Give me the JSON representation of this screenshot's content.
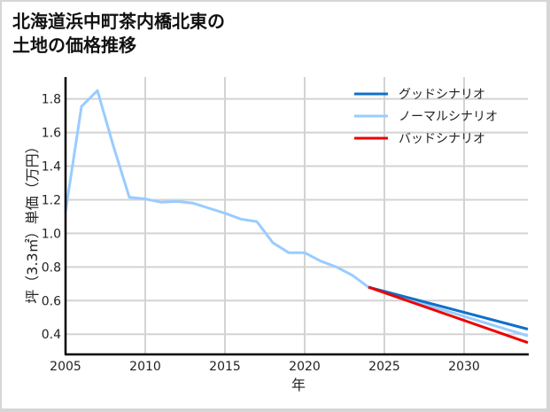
{
  "title": {
    "line1": "北海道浜中町茶内橋北東の",
    "line2": "土地の価格推移"
  },
  "chart_data": {
    "type": "line",
    "title": "北海道浜中町茶内橋北東の土地の価格推移",
    "xlabel": "年",
    "ylabel": "坪（3.3㎡）単価（万円）",
    "xlim": [
      2005,
      2034
    ],
    "ylim": [
      0.28,
      1.93
    ],
    "x_ticks": [
      "2005",
      "2010",
      "2015",
      "2020",
      "2025",
      "2030"
    ],
    "y_ticks": [
      "0.4",
      "0.6",
      "0.8",
      "1.0",
      "1.2",
      "1.4",
      "1.6",
      "1.8"
    ],
    "grid": true,
    "legend_position": "upper right",
    "series": [
      {
        "name": "グッドシナリオ",
        "color": "#1070c8",
        "x": [
          2024,
          2034
        ],
        "values": [
          0.68,
          0.43
        ]
      },
      {
        "name": "ノーマルシナリオ",
        "color": "#99ccff",
        "x": [
          2005,
          2006,
          2007,
          2008,
          2009,
          2010,
          2011,
          2012,
          2013,
          2014,
          2015,
          2016,
          2017,
          2018,
          2019,
          2020,
          2021,
          2022,
          2023,
          2024,
          2034
        ],
        "values": [
          1.13,
          1.755,
          1.85,
          1.52,
          1.215,
          1.205,
          1.185,
          1.19,
          1.18,
          1.15,
          1.12,
          1.085,
          1.07,
          0.945,
          0.885,
          0.885,
          0.835,
          0.8,
          0.75,
          0.68,
          0.39
        ]
      },
      {
        "name": "バッドシナリオ",
        "color": "#ee0000",
        "x": [
          2024,
          2034
        ],
        "values": [
          0.68,
          0.35
        ]
      }
    ]
  }
}
